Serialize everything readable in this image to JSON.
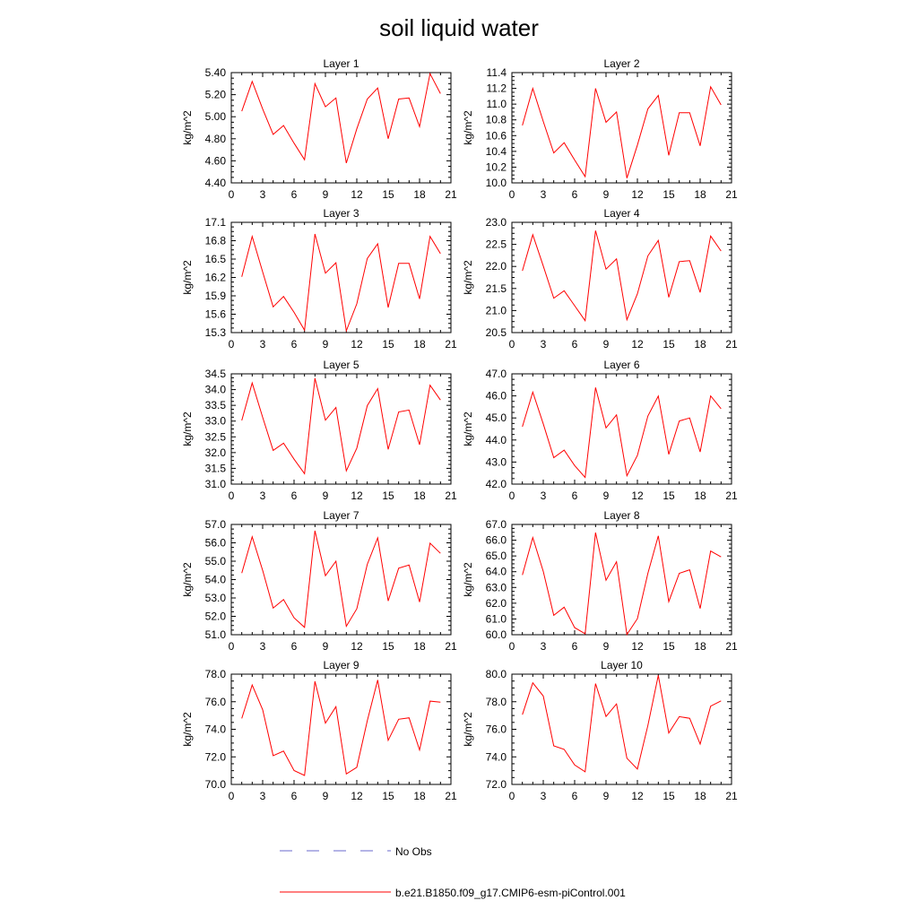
{
  "title": "soil liquid water",
  "legend": [
    {
      "label": "No Obs",
      "color": "#6a6acd",
      "style": "dashed"
    },
    {
      "label": "b.e21.B1850.f09_g17.CMIP6-esm-piControl.001",
      "color": "#ff0000",
      "style": "solid"
    }
  ],
  "chart_data": [
    {
      "type": "line",
      "title": "Layer 1",
      "ylabel": "kg/m^2",
      "xlim": [
        0,
        21
      ],
      "ylim": [
        4.4,
        5.4
      ],
      "xticks": [
        "0",
        "3",
        "6",
        "9",
        "12",
        "15",
        "18",
        "21"
      ],
      "yticks": [
        "4.40",
        "4.60",
        "4.80",
        "5.00",
        "5.20",
        "5.40"
      ],
      "series": [
        {
          "color": "#ff0000",
          "x": [
            1,
            2,
            3,
            4,
            5,
            6,
            7,
            8,
            9,
            10,
            11,
            12,
            13,
            14,
            15,
            16,
            17,
            18,
            19,
            20
          ],
          "y": [
            5.05,
            5.32,
            5.07,
            4.84,
            4.92,
            4.76,
            4.61,
            5.3,
            5.09,
            5.17,
            4.58,
            4.89,
            5.16,
            5.26,
            4.8,
            5.16,
            5.17,
            4.91,
            5.39,
            5.21
          ]
        }
      ]
    },
    {
      "type": "line",
      "title": "Layer 2",
      "ylabel": "kg/m^2",
      "xlim": [
        0,
        21
      ],
      "ylim": [
        10.0,
        11.4
      ],
      "xticks": [
        "0",
        "3",
        "6",
        "9",
        "12",
        "15",
        "18",
        "21"
      ],
      "yticks": [
        "10.0",
        "10.2",
        "10.4",
        "10.6",
        "10.8",
        "11.0",
        "11.2",
        "11.4"
      ],
      "series": [
        {
          "color": "#ff0000",
          "x": [
            1,
            2,
            3,
            4,
            5,
            6,
            7,
            8,
            9,
            10,
            11,
            12,
            13,
            14,
            15,
            16,
            17,
            18,
            19,
            20
          ],
          "y": [
            10.73,
            11.2,
            10.78,
            10.38,
            10.51,
            10.29,
            10.08,
            11.2,
            10.77,
            10.9,
            10.06,
            10.48,
            10.94,
            11.11,
            10.35,
            10.89,
            10.89,
            10.47,
            11.22,
            10.99
          ]
        }
      ]
    },
    {
      "type": "line",
      "title": "Layer 3",
      "ylabel": "kg/m^2",
      "xlim": [
        0,
        21
      ],
      "ylim": [
        15.3,
        17.1
      ],
      "xticks": [
        "0",
        "3",
        "6",
        "9",
        "12",
        "15",
        "18",
        "21"
      ],
      "yticks": [
        "15.3",
        "15.6",
        "15.9",
        "16.2",
        "16.5",
        "16.8",
        "17.1"
      ],
      "series": [
        {
          "color": "#ff0000",
          "x": [
            1,
            2,
            3,
            4,
            5,
            6,
            7,
            8,
            9,
            10,
            11,
            12,
            13,
            14,
            15,
            16,
            17,
            18,
            19,
            20
          ],
          "y": [
            16.21,
            16.87,
            16.29,
            15.72,
            15.89,
            15.63,
            15.34,
            16.91,
            16.27,
            16.44,
            15.33,
            15.77,
            16.51,
            16.75,
            15.71,
            16.43,
            16.43,
            15.85,
            16.87,
            16.59
          ]
        }
      ]
    },
    {
      "type": "line",
      "title": "Layer 4",
      "ylabel": "kg/m^2",
      "xlim": [
        0,
        21
      ],
      "ylim": [
        20.5,
        23.0
      ],
      "xticks": [
        "0",
        "3",
        "6",
        "9",
        "12",
        "15",
        "18",
        "21"
      ],
      "yticks": [
        "20.5",
        "21.0",
        "21.5",
        "22.0",
        "22.5",
        "23.0"
      ],
      "series": [
        {
          "color": "#ff0000",
          "x": [
            1,
            2,
            3,
            4,
            5,
            6,
            7,
            8,
            9,
            10,
            11,
            12,
            13,
            14,
            15,
            16,
            17,
            18,
            19,
            20
          ],
          "y": [
            21.9,
            22.72,
            22.01,
            21.28,
            21.45,
            21.11,
            20.77,
            22.81,
            21.94,
            22.17,
            20.79,
            21.38,
            22.24,
            22.59,
            21.3,
            22.11,
            22.13,
            21.41,
            22.69,
            22.35
          ]
        }
      ]
    },
    {
      "type": "line",
      "title": "Layer 5",
      "ylabel": "kg/m^2",
      "xlim": [
        0,
        21
      ],
      "ylim": [
        31.0,
        34.5
      ],
      "xticks": [
        "0",
        "3",
        "6",
        "9",
        "12",
        "15",
        "18",
        "21"
      ],
      "yticks": [
        "31.0",
        "31.5",
        "32.0",
        "32.5",
        "33.0",
        "33.5",
        "34.0",
        "34.5"
      ],
      "series": [
        {
          "color": "#ff0000",
          "x": [
            1,
            2,
            3,
            4,
            5,
            6,
            7,
            8,
            9,
            10,
            11,
            12,
            13,
            14,
            15,
            16,
            17,
            18,
            19,
            20
          ],
          "y": [
            33.02,
            34.21,
            33.12,
            32.07,
            32.3,
            31.79,
            31.33,
            34.36,
            33.03,
            33.43,
            31.42,
            32.14,
            33.49,
            34.03,
            32.1,
            33.29,
            33.35,
            32.25,
            34.14,
            33.67
          ]
        }
      ]
    },
    {
      "type": "line",
      "title": "Layer 6",
      "ylabel": "kg/m^2",
      "xlim": [
        0,
        21
      ],
      "ylim": [
        42.0,
        47.0
      ],
      "xticks": [
        "0",
        "3",
        "6",
        "9",
        "12",
        "15",
        "18",
        "21"
      ],
      "yticks": [
        "42.0",
        "43.0",
        "44.0",
        "45.0",
        "46.0",
        "47.0"
      ],
      "series": [
        {
          "color": "#ff0000",
          "x": [
            1,
            2,
            3,
            4,
            5,
            6,
            7,
            8,
            9,
            10,
            11,
            12,
            13,
            14,
            15,
            16,
            17,
            18,
            19,
            20
          ],
          "y": [
            44.6,
            46.17,
            44.73,
            43.2,
            43.54,
            42.84,
            42.3,
            46.38,
            44.55,
            45.14,
            42.38,
            43.3,
            45.09,
            45.99,
            43.35,
            44.86,
            45.0,
            43.46,
            46.0,
            45.42
          ]
        }
      ]
    },
    {
      "type": "line",
      "title": "Layer 7",
      "ylabel": "kg/m^2",
      "xlim": [
        0,
        21
      ],
      "ylim": [
        51.0,
        57.0
      ],
      "xticks": [
        "0",
        "3",
        "6",
        "9",
        "12",
        "15",
        "18",
        "21"
      ],
      "yticks": [
        "51.0",
        "52.0",
        "53.0",
        "54.0",
        "55.0",
        "56.0",
        "57.0"
      ],
      "series": [
        {
          "color": "#ff0000",
          "x": [
            1,
            2,
            3,
            4,
            5,
            6,
            7,
            8,
            9,
            10,
            11,
            12,
            13,
            14,
            15,
            16,
            17,
            18,
            19,
            20
          ],
          "y": [
            54.35,
            56.33,
            54.5,
            52.45,
            52.91,
            51.92,
            51.4,
            56.66,
            54.21,
            55.0,
            51.46,
            52.41,
            54.83,
            56.27,
            52.84,
            54.62,
            54.79,
            52.78,
            55.98,
            55.43
          ]
        }
      ]
    },
    {
      "type": "line",
      "title": "Layer 8",
      "ylabel": "kg/m^2",
      "xlim": [
        0,
        21
      ],
      "ylim": [
        60.0,
        67.0
      ],
      "xticks": [
        "0",
        "3",
        "6",
        "9",
        "12",
        "15",
        "18",
        "21"
      ],
      "yticks": [
        "60.0",
        "61.0",
        "62.0",
        "63.0",
        "64.0",
        "65.0",
        "66.0",
        "67.0"
      ],
      "series": [
        {
          "color": "#ff0000",
          "x": [
            1,
            2,
            3,
            4,
            5,
            6,
            7,
            8,
            9,
            10,
            11,
            12,
            13,
            14,
            15,
            16,
            17,
            18,
            19,
            20
          ],
          "y": [
            63.79,
            66.17,
            64.02,
            61.23,
            61.75,
            60.45,
            60.06,
            66.48,
            63.46,
            64.63,
            60.01,
            61.02,
            63.9,
            66.28,
            62.1,
            63.9,
            64.12,
            61.66,
            65.31,
            64.94
          ]
        }
      ]
    },
    {
      "type": "line",
      "title": "Layer 9",
      "ylabel": "kg/m^2",
      "xlim": [
        0,
        21
      ],
      "ylim": [
        70.0,
        78.0
      ],
      "xticks": [
        "0",
        "3",
        "6",
        "9",
        "12",
        "15",
        "18",
        "21"
      ],
      "yticks": [
        "70.0",
        "72.0",
        "74.0",
        "76.0",
        "78.0"
      ],
      "series": [
        {
          "color": "#ff0000",
          "x": [
            1,
            2,
            3,
            4,
            5,
            6,
            7,
            8,
            9,
            10,
            11,
            12,
            13,
            14,
            15,
            16,
            17,
            18,
            19,
            20
          ],
          "y": [
            74.79,
            77.21,
            75.42,
            72.09,
            72.42,
            71.01,
            70.65,
            77.48,
            74.45,
            75.64,
            70.76,
            71.24,
            74.62,
            77.58,
            73.2,
            74.73,
            74.83,
            72.5,
            76.04,
            75.97
          ]
        }
      ]
    },
    {
      "type": "line",
      "title": "Layer 10",
      "ylabel": "kg/m^2",
      "xlim": [
        0,
        21
      ],
      "ylim": [
        72.0,
        80.0
      ],
      "xticks": [
        "0",
        "3",
        "6",
        "9",
        "12",
        "15",
        "18",
        "21"
      ],
      "yticks": [
        "72.0",
        "74.0",
        "76.0",
        "78.0",
        "80.0"
      ],
      "series": [
        {
          "color": "#ff0000",
          "x": [
            1,
            2,
            3,
            4,
            5,
            6,
            7,
            8,
            9,
            10,
            11,
            12,
            13,
            14,
            15,
            16,
            17,
            18,
            19,
            20
          ],
          "y": [
            77.06,
            79.37,
            78.41,
            74.8,
            74.54,
            73.41,
            72.92,
            79.32,
            76.93,
            77.84,
            73.9,
            73.11,
            76.28,
            79.91,
            75.73,
            76.92,
            76.8,
            74.93,
            77.68,
            78.06
          ]
        }
      ]
    }
  ]
}
